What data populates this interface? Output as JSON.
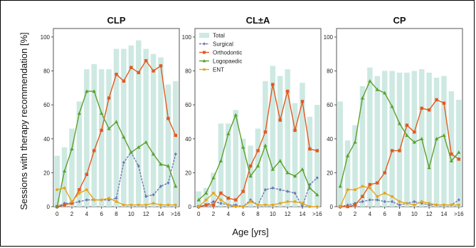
{
  "figure": {
    "ylabel": "Sessions with therapy recommendation [%]",
    "xlabel": "Age [yrs]"
  },
  "colors": {
    "total": "#cde9e2",
    "surgical": "#6f75b3",
    "orthodontic": "#e3591f",
    "logopaedic": "#5aa02c",
    "ent": "#e8a317"
  },
  "legend": [
    "Total",
    "Surgical",
    "Orthodontic",
    "Logopaedic",
    "ENT"
  ],
  "chart_data": [
    {
      "type": "bar+line",
      "title": "CLP",
      "categories": [
        "0",
        "1",
        "2",
        "3",
        "4",
        "5",
        "6",
        "7",
        "8",
        "9",
        "10",
        "11",
        "12",
        "13",
        "14",
        "15",
        ">16"
      ],
      "x_tick_labels": [
        "0",
        "2",
        "4",
        "6",
        "8",
        "10",
        "12",
        "14",
        ">16"
      ],
      "y_ticks": [
        0,
        20,
        40,
        60,
        80,
        100
      ],
      "ylim": [
        0,
        105
      ],
      "series": [
        {
          "name": "Total",
          "kind": "bar",
          "values": [
            30,
            35,
            46,
            62,
            81,
            84,
            81,
            81,
            93,
            93,
            95,
            98,
            93,
            90,
            88,
            72,
            74
          ]
        },
        {
          "name": "Surgical",
          "kind": "line",
          "values": [
            0,
            2,
            2,
            3,
            4,
            4,
            4,
            4,
            5,
            26,
            32,
            24,
            6,
            7,
            12,
            14,
            31
          ]
        },
        {
          "name": "Orthodontic",
          "kind": "line",
          "values": [
            0,
            1,
            2,
            10,
            19,
            33,
            45,
            64,
            78,
            74,
            82,
            79,
            86,
            80,
            83,
            52,
            42
          ]
        },
        {
          "name": "Logopaedic",
          "kind": "line",
          "values": [
            0,
            21,
            34,
            55,
            68,
            68,
            55,
            46,
            50,
            41,
            32,
            35,
            38,
            31,
            25,
            24,
            12
          ]
        },
        {
          "name": "ENT",
          "kind": "line",
          "values": [
            10,
            11,
            3,
            8,
            10,
            4,
            4,
            5,
            3,
            1,
            1,
            1,
            1,
            2,
            1,
            1,
            1
          ]
        }
      ]
    },
    {
      "type": "bar+line",
      "title": "CL±A",
      "categories": [
        "0",
        "1",
        "2",
        "3",
        "4",
        "5",
        "6",
        "7",
        "8",
        "9",
        "10",
        "11",
        "12",
        "13",
        "14",
        "15",
        ">16"
      ],
      "x_tick_labels": [
        "0",
        "2",
        "4",
        "6",
        "8",
        "10",
        "12",
        "14",
        ">16"
      ],
      "y_ticks": [
        0,
        20,
        40,
        60,
        80,
        100
      ],
      "ylim": [
        0,
        105
      ],
      "series": [
        {
          "name": "Total",
          "kind": "bar",
          "values": [
            9,
            11,
            20,
            49,
            49,
            57,
            40,
            36,
            46,
            74,
            83,
            77,
            81,
            61,
            73,
            53,
            60
          ]
        },
        {
          "name": "Surgical",
          "kind": "line",
          "values": [
            0,
            1,
            3,
            2,
            1,
            1,
            0,
            4,
            1,
            10,
            11,
            10,
            9,
            8,
            0,
            13,
            17
          ]
        },
        {
          "name": "Orthodontic",
          "kind": "line",
          "values": [
            0,
            1,
            1,
            8,
            5,
            4,
            9,
            24,
            33,
            44,
            72,
            51,
            68,
            45,
            62,
            34,
            33
          ]
        },
        {
          "name": "Logopaedic",
          "kind": "line",
          "values": [
            4,
            8,
            17,
            27,
            43,
            54,
            35,
            18,
            24,
            36,
            22,
            27,
            20,
            18,
            22,
            11,
            7
          ]
        },
        {
          "name": "ENT",
          "kind": "line",
          "values": [
            0,
            4,
            8,
            4,
            1,
            0,
            0,
            3,
            1,
            1,
            1,
            2,
            3,
            3,
            2,
            0,
            0
          ]
        }
      ]
    },
    {
      "type": "bar+line",
      "title": "CP",
      "categories": [
        "0",
        "1",
        "2",
        "3",
        "4",
        "5",
        "6",
        "7",
        "8",
        "9",
        "10",
        "11",
        "12",
        "13",
        "14",
        "15",
        ">16"
      ],
      "x_tick_labels": [
        "0",
        "2",
        "4",
        "6",
        "8",
        "10",
        "12",
        "14",
        ">16"
      ],
      "y_ticks": [
        0,
        20,
        40,
        60,
        80,
        100
      ],
      "ylim": [
        0,
        105
      ],
      "series": [
        {
          "name": "Total",
          "kind": "bar",
          "values": [
            62,
            39,
            48,
            71,
            82,
            77,
            80,
            80,
            79,
            79,
            80,
            81,
            79,
            76,
            77,
            68,
            63
          ]
        },
        {
          "name": "Surgical",
          "kind": "line",
          "values": [
            0,
            1,
            2,
            3,
            4,
            4,
            3,
            3,
            1,
            2,
            3,
            2,
            1,
            1,
            1,
            1,
            4
          ]
        },
        {
          "name": "Orthodontic",
          "kind": "line",
          "values": [
            0,
            0,
            1,
            6,
            13,
            14,
            20,
            33,
            33,
            48,
            44,
            58,
            57,
            63,
            61,
            31,
            28
          ]
        },
        {
          "name": "Logopaedic",
          "kind": "line",
          "values": [
            12,
            30,
            38,
            64,
            74,
            69,
            67,
            59,
            49,
            42,
            38,
            40,
            23,
            40,
            42,
            27,
            32
          ]
        },
        {
          "name": "ENT",
          "kind": "line",
          "values": [
            0,
            10,
            10,
            12,
            11,
            6,
            8,
            6,
            3,
            2,
            1,
            3,
            2,
            1,
            1,
            1,
            1
          ]
        }
      ]
    }
  ]
}
